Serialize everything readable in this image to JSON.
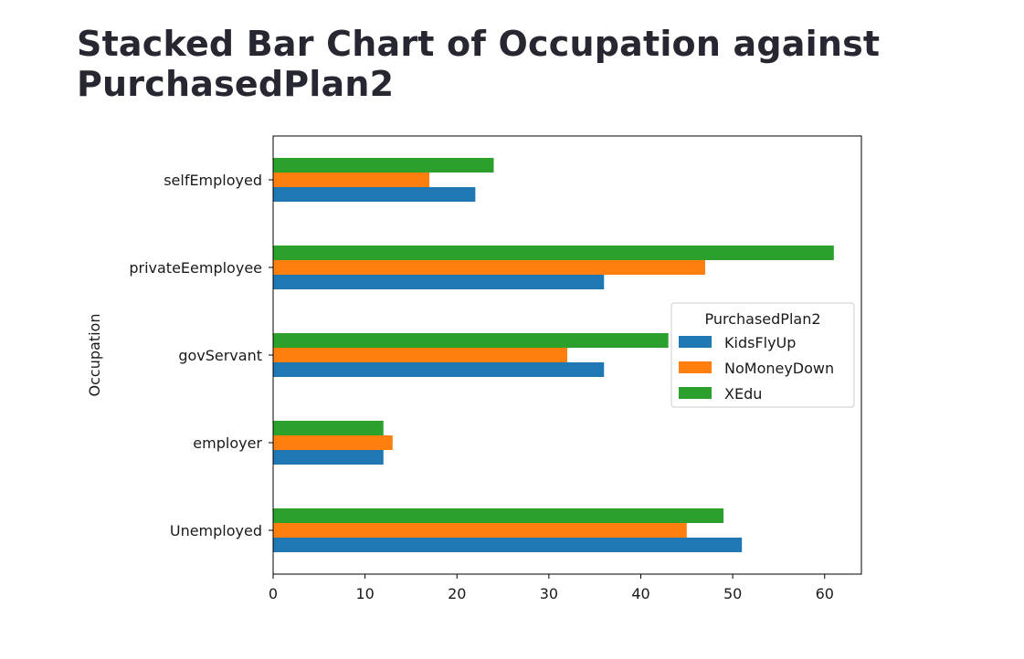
{
  "page": {
    "title": "Stacked Bar Chart of Occupation against PurchasedPlan2"
  },
  "chart_data": {
    "type": "bar",
    "orientation": "horizontal",
    "title": "",
    "xlabel": "",
    "ylabel": "Occupation",
    "categories": [
      "Unemployed",
      "employer",
      "govServant",
      "privateEemployee",
      "selfEmployed"
    ],
    "xlim": [
      0,
      64
    ],
    "xticks": [
      0,
      10,
      20,
      30,
      40,
      50,
      60
    ],
    "grid": false,
    "legend": {
      "title": "PurchasedPlan2",
      "placement": "center-right"
    },
    "series": [
      {
        "name": "KidsFlyUp",
        "color": "#1f77b4",
        "values": [
          51,
          12,
          36,
          36,
          22
        ]
      },
      {
        "name": "NoMoneyDown",
        "color": "#ff7f0e",
        "values": [
          45,
          13,
          32,
          47,
          17
        ]
      },
      {
        "name": "XEdu",
        "color": "#2ca02c",
        "values": [
          49,
          12,
          43,
          61,
          24
        ]
      }
    ]
  }
}
